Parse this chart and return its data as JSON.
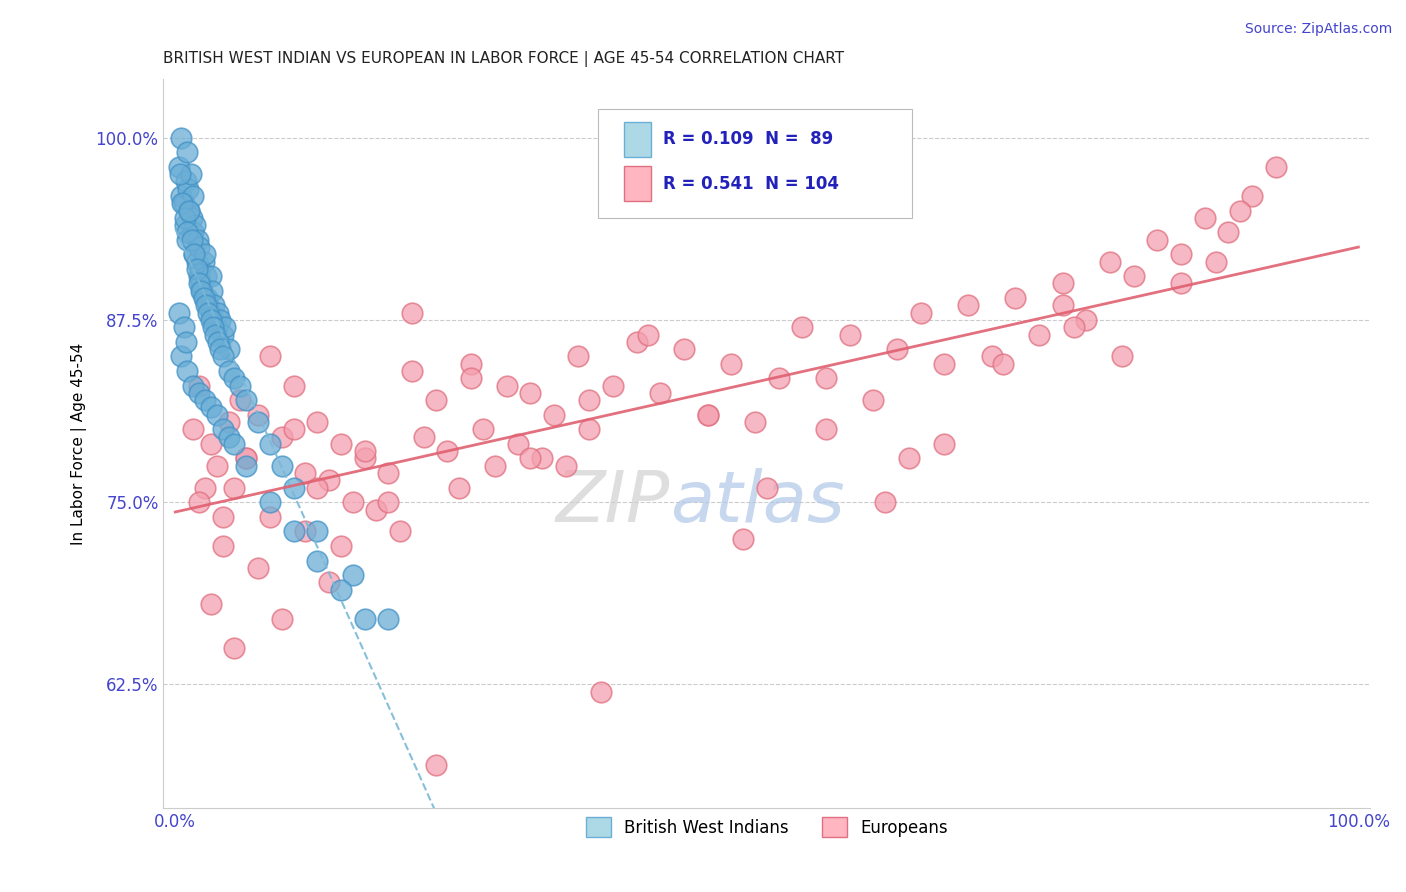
{
  "title": "BRITISH WEST INDIAN VS EUROPEAN IN LABOR FORCE | AGE 45-54 CORRELATION CHART",
  "source": "Source: ZipAtlas.com",
  "ylabel": "In Labor Force | Age 45-54",
  "x_tick_labels": [
    "0.0%",
    "100.0%"
  ],
  "y_tick_labels": [
    "62.5%",
    "75.0%",
    "87.5%",
    "100.0%"
  ],
  "xlim": [
    -1,
    101
  ],
  "ylim": [
    54,
    104
  ],
  "y_ticks": [
    62.5,
    75.0,
    87.5,
    100.0
  ],
  "legend_entries": [
    "British West Indians",
    "Europeans"
  ],
  "R_bwi": 0.109,
  "N_bwi": 89,
  "R_eur": 0.541,
  "N_eur": 104,
  "bwi_color": "#6baed6",
  "eur_color": "#f4a0b0",
  "bwi_edge_color": "#4292c6",
  "eur_edge_color": "#e07080",
  "bwi_trend_color": "#7ab8d8",
  "eur_trend_color": "#e06070",
  "title_color": "#222222",
  "source_color": "#4444cc",
  "axis_tick_color": "#4444cc",
  "background_color": "#ffffff",
  "bwi_x": [
    0.3,
    0.5,
    0.5,
    0.7,
    0.8,
    0.9,
    1.0,
    1.0,
    1.1,
    1.2,
    1.3,
    1.4,
    1.5,
    1.5,
    1.6,
    1.7,
    1.8,
    1.9,
    2.0,
    2.0,
    2.1,
    2.2,
    2.3,
    2.4,
    2.5,
    2.5,
    2.6,
    2.7,
    2.8,
    3.0,
    3.0,
    3.1,
    3.2,
    3.3,
    3.5,
    3.6,
    3.8,
    4.0,
    4.2,
    4.5,
    0.4,
    0.6,
    0.8,
    1.0,
    1.2,
    1.4,
    1.6,
    1.8,
    2.0,
    2.2,
    2.4,
    2.6,
    2.8,
    3.0,
    3.2,
    3.4,
    3.6,
    3.8,
    4.0,
    4.5,
    5.0,
    5.5,
    6.0,
    7.0,
    8.0,
    9.0,
    10.0,
    12.0,
    15.0,
    18.0,
    0.5,
    1.0,
    1.5,
    2.0,
    2.5,
    3.0,
    3.5,
    4.0,
    4.5,
    5.0,
    6.0,
    8.0,
    10.0,
    12.0,
    14.0,
    16.0,
    0.3,
    0.7,
    0.9
  ],
  "bwi_y": [
    98.0,
    96.0,
    100.0,
    95.5,
    94.0,
    97.0,
    93.0,
    99.0,
    96.5,
    95.0,
    97.5,
    94.5,
    93.5,
    96.0,
    92.0,
    94.0,
    91.5,
    93.0,
    90.5,
    92.5,
    91.0,
    90.0,
    89.5,
    91.5,
    89.0,
    92.0,
    90.5,
    89.0,
    88.5,
    88.0,
    90.5,
    89.5,
    87.5,
    88.5,
    87.0,
    88.0,
    87.5,
    86.5,
    87.0,
    85.5,
    97.5,
    95.5,
    94.5,
    93.5,
    95.0,
    93.0,
    92.0,
    91.0,
    90.0,
    89.5,
    89.0,
    88.5,
    88.0,
    87.5,
    87.0,
    86.5,
    86.0,
    85.5,
    85.0,
    84.0,
    83.5,
    83.0,
    82.0,
    80.5,
    79.0,
    77.5,
    76.0,
    73.0,
    70.0,
    67.0,
    85.0,
    84.0,
    83.0,
    82.5,
    82.0,
    81.5,
    81.0,
    80.0,
    79.5,
    79.0,
    77.5,
    75.0,
    73.0,
    71.0,
    69.0,
    67.0,
    88.0,
    87.0,
    86.0
  ],
  "eur_x": [
    1.5,
    2.0,
    2.5,
    3.0,
    3.5,
    4.0,
    4.5,
    5.0,
    5.5,
    6.0,
    7.0,
    8.0,
    9.0,
    10.0,
    11.0,
    12.0,
    13.0,
    14.0,
    15.0,
    16.0,
    17.0,
    18.0,
    19.0,
    20.0,
    21.0,
    22.0,
    23.0,
    24.0,
    25.0,
    26.0,
    27.0,
    28.0,
    29.0,
    30.0,
    31.0,
    32.0,
    33.0,
    34.0,
    35.0,
    37.0,
    39.0,
    41.0,
    43.0,
    45.0,
    47.0,
    49.0,
    51.0,
    53.0,
    55.0,
    57.0,
    59.0,
    61.0,
    63.0,
    65.0,
    67.0,
    69.0,
    71.0,
    73.0,
    75.0,
    77.0,
    79.0,
    81.0,
    83.0,
    85.0,
    87.0,
    89.0,
    91.0,
    93.0,
    2.0,
    4.0,
    6.0,
    8.0,
    10.0,
    12.0,
    14.0,
    16.0,
    18.0,
    20.0,
    25.0,
    30.0,
    35.0,
    40.0,
    45.0,
    50.0,
    55.0,
    60.0,
    65.0,
    70.0,
    75.0,
    80.0,
    85.0,
    90.0,
    3.0,
    5.0,
    7.0,
    9.0,
    11.0,
    13.0,
    22.0,
    36.0,
    48.0,
    62.0,
    76.0,
    88.0
  ],
  "eur_y": [
    80.0,
    83.0,
    76.0,
    79.0,
    77.5,
    74.0,
    80.5,
    76.0,
    82.0,
    78.0,
    81.0,
    85.0,
    79.5,
    83.0,
    77.0,
    80.5,
    76.5,
    79.0,
    75.0,
    78.0,
    74.5,
    77.0,
    73.0,
    84.0,
    79.5,
    82.0,
    78.5,
    76.0,
    84.5,
    80.0,
    77.5,
    83.0,
    79.0,
    82.5,
    78.0,
    81.0,
    77.5,
    85.0,
    80.0,
    83.0,
    86.0,
    82.5,
    85.5,
    81.0,
    84.5,
    80.5,
    83.5,
    87.0,
    83.5,
    86.5,
    82.0,
    85.5,
    88.0,
    84.5,
    88.5,
    85.0,
    89.0,
    86.5,
    90.0,
    87.5,
    91.5,
    90.5,
    93.0,
    92.0,
    94.5,
    93.5,
    96.0,
    98.0,
    75.0,
    72.0,
    78.0,
    74.0,
    80.0,
    76.0,
    72.0,
    78.5,
    75.0,
    88.0,
    83.5,
    78.0,
    82.0,
    86.5,
    81.0,
    76.0,
    80.0,
    75.0,
    79.0,
    84.5,
    88.5,
    85.0,
    90.0,
    95.0,
    68.0,
    65.0,
    70.5,
    67.0,
    73.0,
    69.5,
    57.0,
    62.0,
    72.5,
    78.0,
    87.0,
    91.5
  ]
}
